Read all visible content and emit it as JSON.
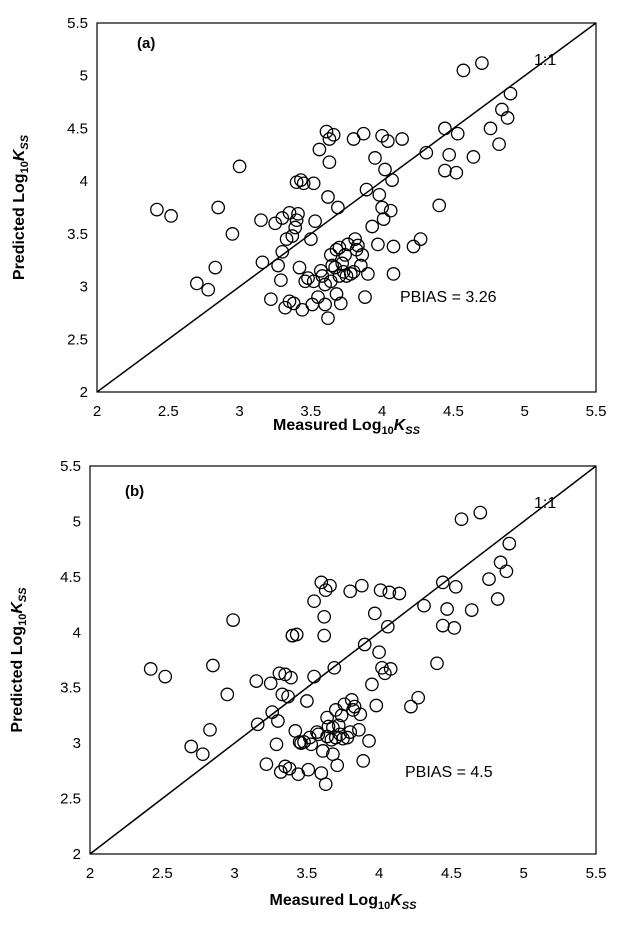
{
  "chart_data": [
    {
      "type": "scatter",
      "panel_label": "(a)",
      "xlabel": {
        "pre": "Measured Log",
        "sub1": "10",
        "mid": "K",
        "sub2": "SS"
      },
      "ylabel": {
        "pre": "Predicted Log",
        "sub1": "10",
        "mid": "K",
        "sub2": "SS"
      },
      "xlim": [
        2,
        5.5
      ],
      "ylim": [
        2,
        5.5
      ],
      "xticks": [
        "2",
        "2.5",
        "3",
        "3.5",
        "4",
        "4.5",
        "5",
        "5.5"
      ],
      "yticks": [
        "2",
        "2.5",
        "3",
        "3.5",
        "4",
        "4.5",
        "5",
        "5.5"
      ],
      "grid": false,
      "reference_line_label": "1:1",
      "annotation": "PBIAS = 3.26",
      "x": [
        2.42,
        2.52,
        2.7,
        2.78,
        2.83,
        2.85,
        2.95,
        3.0,
        3.15,
        3.16,
        3.22,
        3.25,
        3.27,
        3.29,
        3.3,
        3.3,
        3.32,
        3.33,
        3.35,
        3.35,
        3.37,
        3.38,
        3.39,
        3.4,
        3.4,
        3.41,
        3.42,
        3.43,
        3.44,
        3.45,
        3.46,
        3.48,
        3.5,
        3.51,
        3.52,
        3.52,
        3.53,
        3.55,
        3.56,
        3.57,
        3.58,
        3.6,
        3.6,
        3.61,
        3.62,
        3.62,
        3.63,
        3.63,
        3.64,
        3.64,
        3.65,
        3.66,
        3.67,
        3.68,
        3.68,
        3.69,
        3.7,
        3.7,
        3.71,
        3.72,
        3.73,
        3.74,
        3.75,
        3.76,
        3.78,
        3.8,
        3.8,
        3.81,
        3.82,
        3.83,
        3.85,
        3.86,
        3.87,
        3.88,
        3.89,
        3.9,
        3.93,
        3.95,
        3.97,
        3.98,
        4.0,
        4.0,
        4.01,
        4.02,
        4.04,
        4.06,
        4.07,
        4.08,
        4.08,
        4.14,
        4.22,
        4.27,
        4.31,
        4.4,
        4.44,
        4.44,
        4.47,
        4.52,
        4.53,
        4.57,
        4.64,
        4.7,
        4.76,
        4.82,
        4.84,
        4.88,
        4.9
      ],
      "y": [
        3.73,
        3.67,
        3.03,
        2.97,
        3.18,
        3.75,
        3.5,
        4.14,
        3.63,
        3.23,
        2.88,
        3.6,
        3.2,
        3.06,
        3.33,
        3.65,
        2.8,
        3.45,
        2.86,
        3.7,
        3.48,
        2.84,
        3.56,
        3.63,
        3.99,
        3.69,
        3.18,
        4.01,
        2.78,
        3.98,
        3.05,
        3.08,
        3.45,
        2.83,
        3.05,
        3.98,
        3.62,
        2.9,
        4.3,
        3.15,
        3.1,
        3.02,
        2.83,
        4.47,
        3.85,
        2.7,
        4.18,
        4.4,
        3.05,
        3.3,
        3.2,
        4.44,
        3.18,
        3.35,
        2.93,
        3.75,
        3.37,
        3.1,
        2.84,
        3.22,
        3.14,
        3.3,
        3.1,
        3.4,
        3.12,
        4.4,
        3.14,
        3.45,
        3.35,
        3.39,
        3.2,
        3.3,
        4.45,
        2.9,
        3.92,
        3.12,
        3.57,
        4.22,
        3.4,
        3.87,
        4.43,
        3.75,
        3.64,
        4.11,
        4.38,
        3.72,
        4.01,
        3.38,
        3.12,
        4.4,
        3.38,
        3.45,
        4.27,
        3.77,
        4.5,
        4.1,
        4.25,
        4.08,
        4.45,
        5.05,
        4.23,
        5.12,
        4.5,
        4.35,
        4.68,
        4.6,
        4.83
      ]
    },
    {
      "type": "scatter",
      "panel_label": "(b)",
      "xlabel": {
        "pre": "Measured Log",
        "sub1": "10",
        "mid": "K",
        "sub2": "SS"
      },
      "ylabel": {
        "pre": "Predicted Log",
        "sub1": "10",
        "mid": "K",
        "sub2": "SS"
      },
      "xlim": [
        2,
        5.5
      ],
      "ylim": [
        2,
        5.5
      ],
      "xticks": [
        "2",
        "2.5",
        "3",
        "3.5",
        "4",
        "4.5",
        "5",
        "5.5"
      ],
      "yticks": [
        "2",
        "2.5",
        "3",
        "3.5",
        "4",
        "4.5",
        "5",
        "5.5"
      ],
      "grid": false,
      "reference_line_label": "1:1",
      "annotation": "PBIAS = 4.5",
      "x": [
        2.42,
        2.52,
        2.7,
        2.78,
        2.83,
        2.85,
        2.95,
        2.99,
        3.15,
        3.16,
        3.22,
        3.25,
        3.26,
        3.29,
        3.3,
        3.31,
        3.32,
        3.33,
        3.35,
        3.35,
        3.37,
        3.38,
        3.39,
        3.4,
        3.4,
        3.42,
        3.43,
        3.44,
        3.45,
        3.46,
        3.48,
        3.5,
        3.51,
        3.52,
        3.53,
        3.55,
        3.55,
        3.57,
        3.58,
        3.6,
        3.6,
        3.61,
        3.62,
        3.62,
        3.63,
        3.63,
        3.64,
        3.64,
        3.65,
        3.66,
        3.67,
        3.68,
        3.68,
        3.69,
        3.7,
        3.7,
        3.71,
        3.72,
        3.73,
        3.74,
        3.75,
        3.76,
        3.78,
        3.8,
        3.8,
        3.81,
        3.82,
        3.83,
        3.86,
        3.87,
        3.88,
        3.89,
        3.9,
        3.93,
        3.95,
        3.97,
        3.98,
        4.0,
        4.01,
        4.02,
        4.04,
        4.06,
        4.07,
        4.08,
        4.14,
        4.22,
        4.27,
        4.31,
        4.4,
        4.44,
        4.44,
        4.47,
        4.52,
        4.53,
        4.57,
        4.64,
        4.7,
        4.76,
        4.82,
        4.84,
        4.88,
        4.9
      ],
      "y": [
        3.67,
        3.6,
        2.97,
        2.9,
        3.12,
        3.7,
        3.44,
        4.11,
        3.56,
        3.17,
        2.81,
        3.54,
        3.28,
        2.99,
        3.2,
        3.63,
        2.74,
        3.44,
        2.79,
        3.62,
        3.42,
        2.77,
        3.59,
        3.97,
        3.97,
        3.11,
        3.98,
        2.72,
        3.01,
        3.0,
        3.01,
        3.38,
        2.76,
        3.05,
        2.99,
        3.6,
        4.28,
        3.1,
        3.08,
        2.73,
        4.45,
        2.93,
        3.97,
        4.14,
        4.38,
        2.63,
        3.06,
        3.23,
        3.15,
        4.42,
        3.03,
        3.14,
        2.9,
        3.68,
        3.3,
        3.05,
        2.8,
        3.16,
        3.08,
        3.25,
        3.04,
        3.35,
        3.05,
        4.37,
        3.1,
        3.39,
        3.3,
        3.33,
        3.12,
        3.26,
        4.42,
        2.84,
        3.89,
        3.02,
        3.53,
        4.17,
        3.34,
        3.82,
        4.38,
        3.68,
        3.63,
        4.05,
        4.36,
        3.67,
        4.35,
        3.33,
        3.41,
        4.24,
        3.72,
        4.45,
        4.06,
        4.21,
        4.04,
        4.41,
        5.02,
        4.2,
        5.08,
        4.48,
        4.3,
        4.63,
        4.55,
        4.8
      ]
    }
  ]
}
